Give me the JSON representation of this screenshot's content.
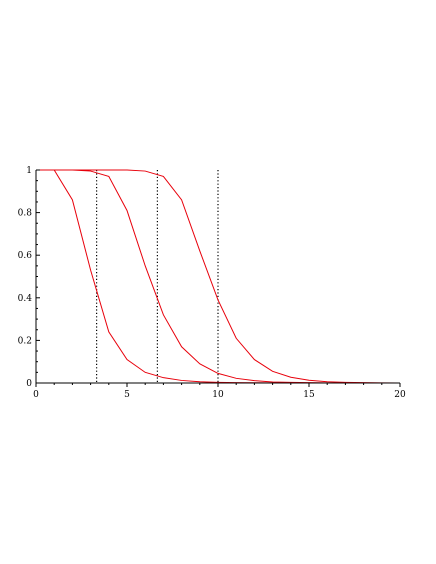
{
  "chart_data": {
    "type": "line",
    "title": "",
    "xlabel": "",
    "ylabel": "",
    "xlim": [
      0,
      20
    ],
    "ylim": [
      0,
      1
    ],
    "x_ticks": [
      0,
      5,
      10,
      15,
      20
    ],
    "x_tick_labels": [
      "0",
      "5",
      "10",
      "15",
      "20"
    ],
    "y_ticks": [
      0,
      0.2,
      0.4,
      0.6,
      0.8,
      1
    ],
    "y_tick_labels": [
      "0",
      "0.2",
      "0.4",
      "0.6",
      "0.8",
      "1"
    ],
    "grid": false,
    "legend": "none",
    "line_color": "#e8000b",
    "series": [
      {
        "x": [
          0,
          1,
          2,
          3,
          4,
          5,
          6,
          7,
          8,
          9,
          10,
          11,
          12,
          13,
          14,
          15,
          16,
          17,
          18,
          19,
          20
        ],
        "values": [
          1.0,
          1.0,
          0.86,
          0.53,
          0.24,
          0.11,
          0.05,
          0.025,
          0.012,
          0.006,
          0.003,
          0.0015,
          0.001,
          0.0005,
          0.0003,
          0.0002,
          0.0001,
          0.0,
          0.0,
          0.0,
          0.0
        ]
      },
      {
        "x": [
          0,
          1,
          2,
          3,
          4,
          5,
          6,
          7,
          8,
          9,
          10,
          11,
          12,
          13,
          14,
          15,
          16,
          17,
          18,
          19,
          20
        ],
        "values": [
          1.0,
          1.0,
          1.0,
          0.995,
          0.97,
          0.81,
          0.55,
          0.32,
          0.17,
          0.09,
          0.045,
          0.022,
          0.011,
          0.005,
          0.003,
          0.0015,
          0.0008,
          0.0004,
          0.0002,
          0.0001,
          0.0
        ]
      },
      {
        "x": [
          0,
          1,
          2,
          3,
          4,
          5,
          6,
          7,
          8,
          9,
          10,
          11,
          12,
          13,
          14,
          15,
          16,
          17,
          18,
          19,
          20
        ],
        "values": [
          1.0,
          1.0,
          1.0,
          1.0,
          1.0,
          1.0,
          0.995,
          0.97,
          0.86,
          0.62,
          0.39,
          0.21,
          0.11,
          0.055,
          0.027,
          0.013,
          0.006,
          0.003,
          0.0015,
          0.0007,
          0.0003
        ]
      }
    ],
    "vertical_lines": [
      3.33,
      6.67,
      10.0
    ]
  }
}
